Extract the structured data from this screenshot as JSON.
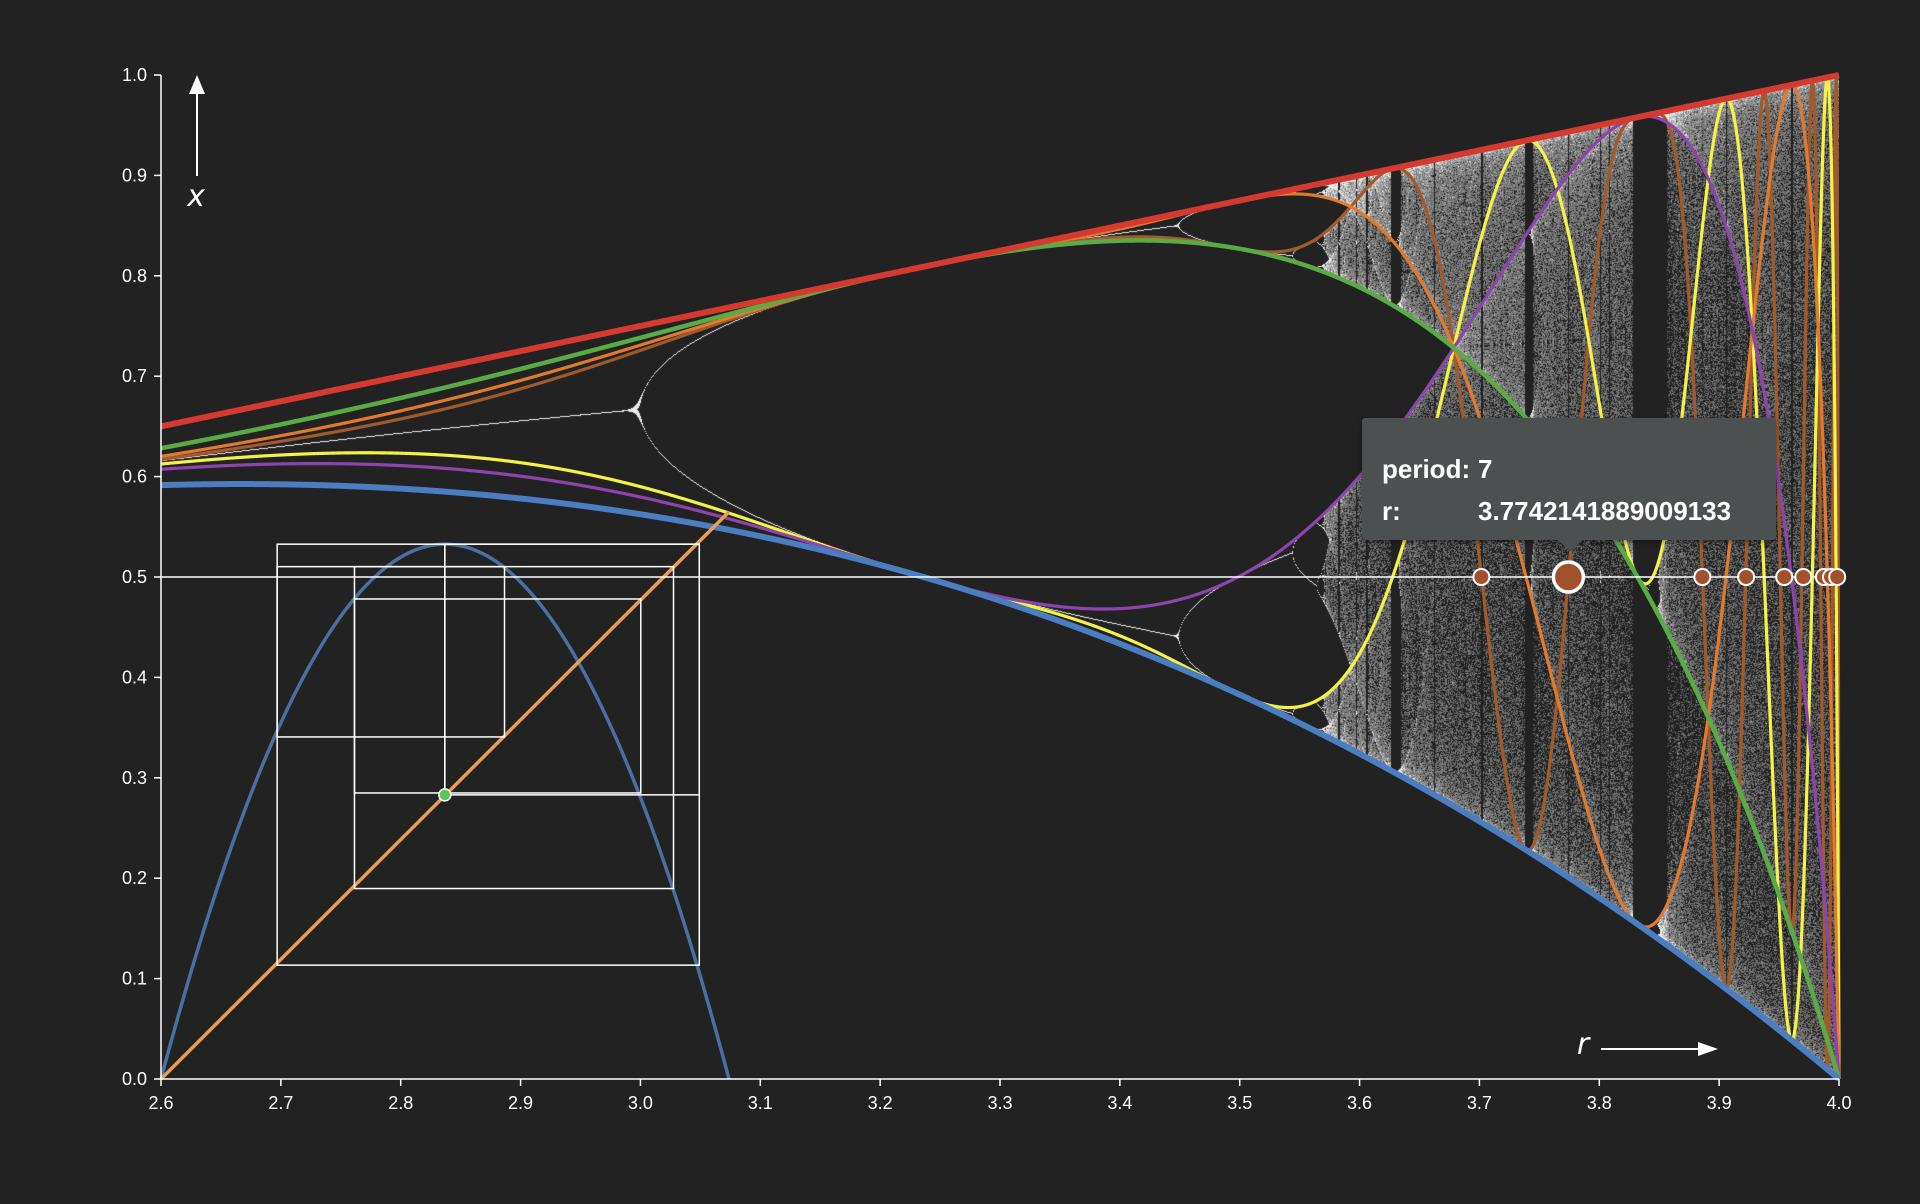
{
  "chart_data": {
    "type": "scatter",
    "title": "",
    "xlabel": "r",
    "ylabel": "x",
    "xlim": [
      2.6,
      4.0
    ],
    "ylim": [
      0.0,
      1.0
    ],
    "x_ticks": [
      "2.6",
      "2.7",
      "2.8",
      "2.9",
      "3.0",
      "3.1",
      "3.2",
      "3.3",
      "3.4",
      "3.5",
      "3.6",
      "3.7",
      "3.8",
      "3.9",
      "4.0"
    ],
    "y_ticks": [
      "0.0",
      "0.1",
      "0.2",
      "0.3",
      "0.4",
      "0.5",
      "0.6",
      "0.7",
      "0.8",
      "0.9",
      "1.0"
    ],
    "reference_line_y": 0.5,
    "bifurcation": {
      "description": "logistic map attractor x(n+1) = r x(n) (1 - x(n))",
      "color": "#e6e6e6",
      "r_range": [
        2.6,
        4.0
      ]
    },
    "iterate_curves": [
      {
        "iterate": 1,
        "color": "#d63a2f"
      },
      {
        "iterate": 2,
        "color": "#4a7ec0"
      },
      {
        "iterate": 3,
        "color": "#5aaa46"
      },
      {
        "iterate": 4,
        "color": "#8e44ad"
      },
      {
        "iterate": 5,
        "color": "#e07a2e"
      },
      {
        "iterate": 6,
        "color": "#f2f247"
      },
      {
        "iterate": 7,
        "color": "#a05a2c"
      }
    ],
    "superstable_points": {
      "color": "#a0522d",
      "period": 7,
      "x": 0.5,
      "r_values": [
        3.7016,
        3.7742141889009133,
        3.886,
        3.9225,
        3.9543,
        3.9702,
        3.9874,
        3.9933,
        3.9985
      ],
      "highlighted_r": 3.7742141889009133
    },
    "inset_cobweb": {
      "parabola_color": "#4a6fa0",
      "diagonal_color": "#e8a050",
      "cobweb_color": "#ffffff",
      "fixed_point_color": "#5cc85c",
      "fixed_point": [
        2.8368,
        0.283
      ],
      "cobweb_rects": [
        {
          "x": [
            2.6969,
            3.0491
          ],
          "y": [
            0.1134,
            0.5327
          ]
        },
        {
          "x": [
            2.7614,
            3.0276
          ],
          "y": [
            0.1897,
            0.5103
          ]
        },
        {
          "x": [
            2.7614,
            3.0003
          ],
          "y": [
            0.2849,
            0.4781
          ]
        },
        {
          "x": [
            2.6969,
            2.8866
          ],
          "y": [
            0.3407,
            0.5103
          ]
        },
        {
          "x": [
            2.8368,
            3.0491
          ],
          "y": [
            0.283,
            0.5327
          ]
        }
      ],
      "cobweb_vertical_at": 2.8368
    }
  },
  "tooltip": {
    "period_label": "period:",
    "period_value": "7",
    "r_label": "r:",
    "r_value": "3.7742141889009133"
  }
}
